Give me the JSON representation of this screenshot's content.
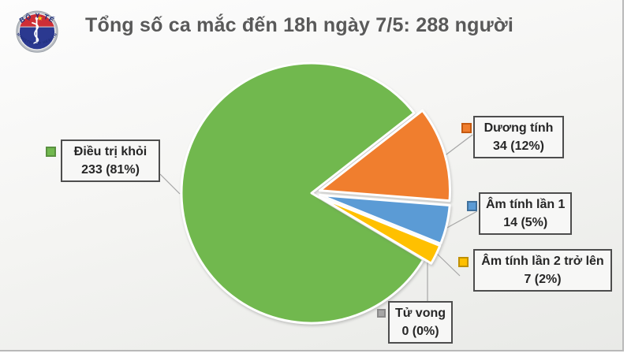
{
  "slide": {
    "title": "Tổng số ca mắc đến 18h ngày 7/5: 288 người",
    "title_color": "#595959"
  },
  "logo": {
    "name": "ministry-of-health-vietnam",
    "top_text": "BỘ Y TẾ",
    "bottom_text": "MINISTRY OF HEALTH",
    "colors": {
      "ring": "#b9bdc3",
      "disc": "#2B3990",
      "cap": "#CE2E36",
      "star": "#F9D616",
      "text": "#1F2F7B"
    }
  },
  "chart_data": {
    "type": "pie",
    "title": "Tổng số ca mắc đến 18h ngày 7/5: 288 người",
    "total": 288,
    "start_angle_deg": 30.75,
    "direction": "clockwise",
    "legend_position": "callout-labels",
    "slices": [
      {
        "label": "Điều trị khỏi",
        "value": 233,
        "pct": "81%",
        "display": "233 (81%)",
        "color": "#71B84E",
        "marker_border": "#5A9140",
        "explode": 0
      },
      {
        "label": "Dương tính",
        "value": 34,
        "pct": "12%",
        "display": "34 (12%)",
        "color": "#F07E2E",
        "marker_border": "#C55A11",
        "explode": 11
      },
      {
        "label": "Âm tính lần 1",
        "value": 14,
        "pct": "5%",
        "display": "14 (5%)",
        "color": "#5B9BD5",
        "marker_border": "#41719C",
        "explode": 11
      },
      {
        "label": "Âm tính lần 2 trở lên",
        "value": 7,
        "pct": "2%",
        "display": "7 (2%)",
        "color": "#FFC000",
        "marker_border": "#BF9000",
        "explode": 11
      },
      {
        "label": "Tử vong",
        "value": 0,
        "pct": "0%",
        "display": "0 (0%)",
        "color": "#A6A6A6",
        "marker_border": "#8a8a8a",
        "explode": 0
      }
    ]
  }
}
